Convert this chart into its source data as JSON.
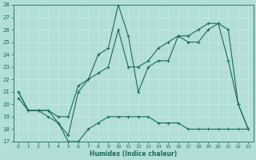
{
  "xlabel": "Humidex (Indice chaleur)",
  "bg_color": "#b2deda",
  "line_color": "#1a6b5a",
  "grid_color": "#c8e8e4",
  "xlim": [
    -0.5,
    23.5
  ],
  "ylim": [
    17,
    28
  ],
  "xticks": [
    0,
    1,
    2,
    3,
    4,
    5,
    6,
    7,
    8,
    9,
    10,
    11,
    12,
    13,
    14,
    15,
    16,
    17,
    18,
    19,
    20,
    21,
    22,
    23
  ],
  "yticks": [
    17,
    18,
    19,
    20,
    21,
    22,
    23,
    24,
    25,
    26,
    27,
    28
  ],
  "line1_x": [
    0,
    1,
    2,
    3,
    4,
    5,
    6,
    7,
    8,
    9,
    10,
    11,
    12,
    13,
    14,
    15,
    16,
    17,
    18,
    19,
    20,
    21,
    22,
    23
  ],
  "line1_y": [
    20.5,
    19.5,
    19.5,
    19.0,
    18.5,
    17.0,
    17.0,
    18.0,
    18.5,
    19.0,
    19.0,
    19.0,
    19.0,
    19.0,
    18.5,
    18.5,
    18.5,
    18.0,
    18.0,
    18.0,
    18.0,
    18.0,
    18.0,
    18.0
  ],
  "line2_x": [
    0,
    1,
    2,
    3,
    4,
    5,
    6,
    7,
    8,
    9,
    10,
    11,
    12,
    13,
    14,
    15,
    16,
    17,
    18,
    19,
    20,
    21,
    22,
    23
  ],
  "line2_y": [
    21.0,
    19.5,
    19.5,
    19.5,
    18.5,
    17.5,
    21.0,
    22.0,
    24.0,
    24.5,
    28.0,
    25.5,
    21.0,
    23.0,
    23.5,
    23.5,
    25.5,
    25.0,
    25.0,
    26.0,
    26.5,
    23.5,
    20.0,
    18.0
  ],
  "line3_x": [
    0,
    1,
    2,
    3,
    4,
    5,
    6,
    7,
    8,
    9,
    10,
    11,
    12,
    13,
    14,
    15,
    16,
    17,
    18,
    19,
    20,
    21,
    22,
    23
  ],
  "line3_y": [
    21.0,
    19.5,
    19.5,
    19.5,
    19.0,
    19.0,
    21.5,
    22.0,
    22.5,
    23.0,
    26.0,
    23.0,
    23.0,
    23.5,
    24.5,
    25.0,
    25.5,
    25.5,
    26.0,
    26.5,
    26.5,
    26.0,
    20.0,
    18.0
  ]
}
